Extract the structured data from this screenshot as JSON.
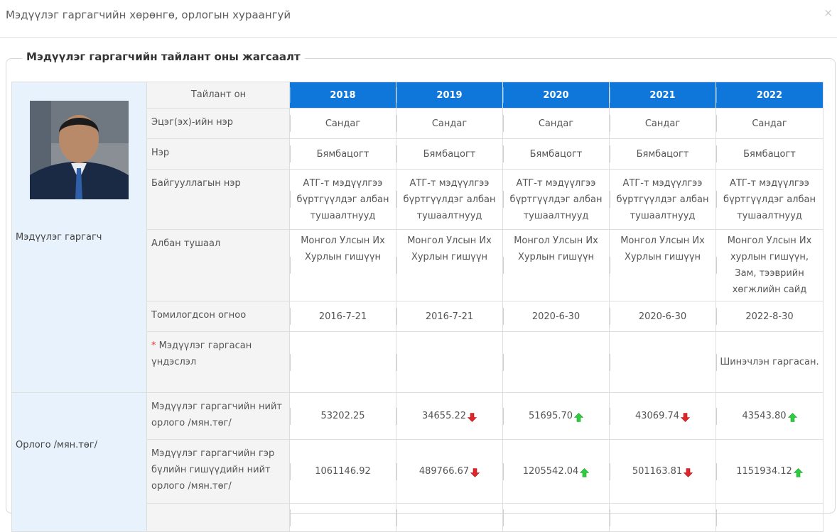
{
  "dialog": {
    "title": "Мэдүүлэг гаргагчийн хөрөнгө, орлогын хураангуй",
    "close_label": "×"
  },
  "section": {
    "legend": "Мэдүүлэг гаргагчийн тайлант оны жагсаалт"
  },
  "groups": {
    "declarant": "Мэдүүлэг гаргагч",
    "income": "Орлого /мян.төг/"
  },
  "labels": {
    "year": "Тайлант он",
    "patronymic": "Эцэг(эх)-ийн нэр",
    "name": "Нэр",
    "organization": "Байгууллагын нэр",
    "position": "Албан тушаал",
    "appointed": "Томилогдсон огноо",
    "basis_star": "*",
    "basis": "Мэдүүлэг гаргасан үндэслэл",
    "total_income": "Мэдүүлэг гаргагчийн нийт орлого /мян.төг/",
    "family_income": "Мэдүүлэг гаргагчийн гэр бүлийн гишүүдийн нийт орлого /мян.төг/"
  },
  "years": [
    "2018",
    "2019",
    "2020",
    "2021",
    "2022"
  ],
  "rows": {
    "patronymic": [
      "Сандаг",
      "Сандаг",
      "Сандаг",
      "Сандаг",
      "Сандаг"
    ],
    "name": [
      "Бямбацогт",
      "Бямбацогт",
      "Бямбацогт",
      "Бямбацогт",
      "Бямбацогт"
    ],
    "organization": [
      "АТГ-т мэдүүлгээ бүртгүүлдэг албан тушаалтнууд",
      "АТГ-т мэдүүлгээ бүртгүүлдэг албан тушаалтнууд",
      "АТГ-т мэдүүлгээ бүртгүүлдэг албан тушаалтнууд",
      "АТГ-т мэдүүлгээ бүртгүүлдэг албан тушаалтнууд",
      "АТГ-т мэдүүлгээ бүртгүүлдэг албан тушаалтнууд"
    ],
    "position": [
      "Монгол Улсын Их Хурлын гишүүн",
      "Монгол Улсын Их Хурлын гишүүн",
      "Монгол Улсын Их Хурлын гишүүн",
      "Монгол Улсын Их Хурлын гишүүн",
      "Монгол Улсын Их хурлын гишүүн, Зам, тээврийн хөгжлийн сайд"
    ],
    "appointed": [
      "2016-7-21",
      "2016-7-21",
      "2020-6-30",
      "2020-6-30",
      "2022-8-30"
    ],
    "basis": [
      "",
      "",
      "",
      "",
      "Шинэчлэн гаргасан."
    ],
    "total_income": [
      {
        "value": "53202.25",
        "trend": ""
      },
      {
        "value": "34655.22",
        "trend": "down"
      },
      {
        "value": "51695.70",
        "trend": "up"
      },
      {
        "value": "43069.74",
        "trend": "down"
      },
      {
        "value": "43543.80",
        "trend": "up"
      }
    ],
    "family_income": [
      {
        "value": "1061146.92",
        "trend": ""
      },
      {
        "value": "489766.67",
        "trend": "down"
      },
      {
        "value": "1205542.04",
        "trend": "up"
      },
      {
        "value": "501163.81",
        "trend": "down"
      },
      {
        "value": "1151934.12",
        "trend": "up"
      }
    ]
  },
  "colors": {
    "year_header": "#0f77d9",
    "group_bg": "#e8f2fc",
    "up_arrow": "#2ecc40",
    "down_arrow": "#e0262a"
  }
}
